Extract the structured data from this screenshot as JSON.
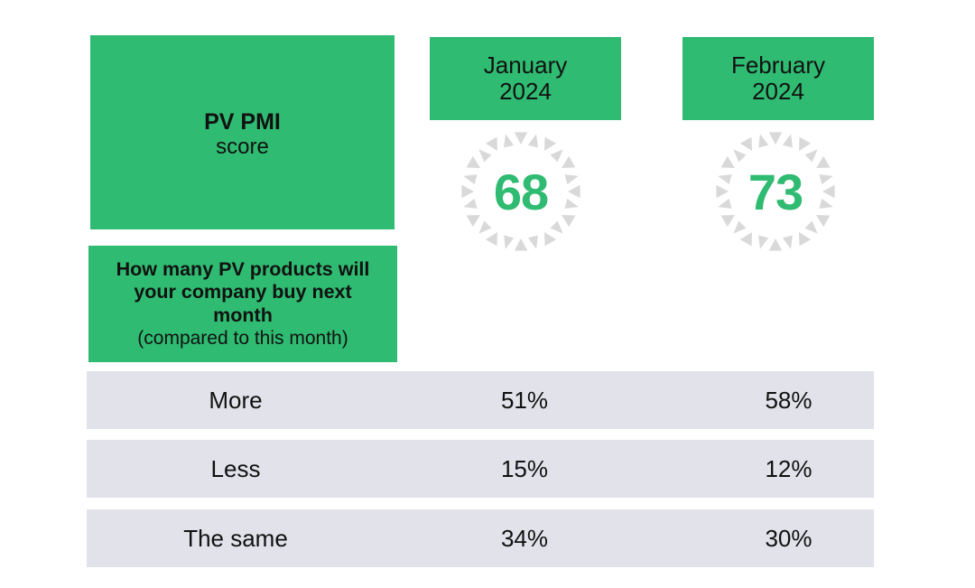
{
  "colors": {
    "accent": "#2fbb71",
    "row_bg": "#e1e2ea",
    "burst": "#d9d9d9"
  },
  "pmi": {
    "title": "PV PMI",
    "subtitle": "score"
  },
  "question": {
    "text": "How many PV products will your company buy next month",
    "note": "(compared to this month)"
  },
  "months": [
    {
      "name": "January",
      "year": "2024",
      "score": "68"
    },
    {
      "name": "February",
      "year": "2024",
      "score": "73"
    }
  ],
  "rows": [
    {
      "label": "More",
      "values": [
        "51%",
        "58%"
      ]
    },
    {
      "label": "Less",
      "values": [
        "15%",
        "12%"
      ]
    },
    {
      "label": "The same",
      "values": [
        "34%",
        "30%"
      ]
    }
  ],
  "chart_data": {
    "type": "table",
    "title": "PV PMI score",
    "columns": [
      "January 2024",
      "February 2024"
    ],
    "pmi_scores": [
      68,
      73
    ],
    "question": "How many PV products will your company buy next month (compared to this month)",
    "categories": [
      "More",
      "Less",
      "The same"
    ],
    "series": [
      {
        "name": "January 2024",
        "values": [
          51,
          15,
          34
        ]
      },
      {
        "name": "February 2024",
        "values": [
          58,
          12,
          30
        ]
      }
    ],
    "unit": "%"
  }
}
